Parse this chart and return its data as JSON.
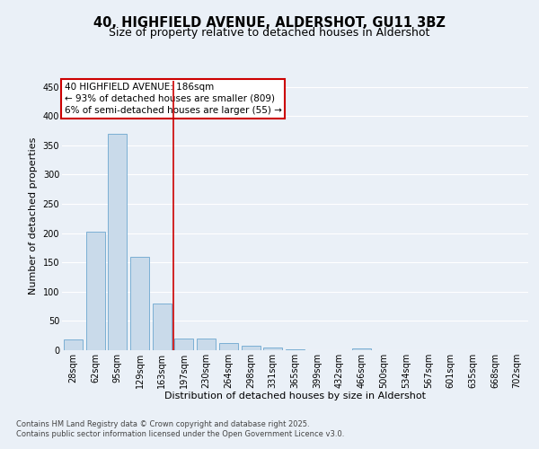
{
  "title_line1": "40, HIGHFIELD AVENUE, ALDERSHOT, GU11 3BZ",
  "title_line2": "Size of property relative to detached houses in Aldershot",
  "xlabel": "Distribution of detached houses by size in Aldershot",
  "ylabel": "Number of detached properties",
  "bar_labels": [
    "28sqm",
    "62sqm",
    "95sqm",
    "129sqm",
    "163sqm",
    "197sqm",
    "230sqm",
    "264sqm",
    "298sqm",
    "331sqm",
    "365sqm",
    "399sqm",
    "432sqm",
    "466sqm",
    "500sqm",
    "534sqm",
    "567sqm",
    "601sqm",
    "635sqm",
    "668sqm",
    "702sqm"
  ],
  "bar_values": [
    18,
    202,
    370,
    160,
    80,
    20,
    20,
    12,
    7,
    4,
    1,
    0,
    0,
    3,
    0,
    0,
    0,
    0,
    0,
    0,
    0
  ],
  "bar_color": "#c9daea",
  "bar_edge_color": "#7bafd4",
  "annotation_text": "40 HIGHFIELD AVENUE: 186sqm\n← 93% of detached houses are smaller (809)\n6% of semi-detached houses are larger (55) →",
  "annotation_box_color": "#ffffff",
  "annotation_box_edge": "#cc0000",
  "vline_x": 4.5,
  "vline_color": "#cc0000",
  "ylim": [
    0,
    460
  ],
  "yticks": [
    0,
    50,
    100,
    150,
    200,
    250,
    300,
    350,
    400,
    450
  ],
  "bg_color": "#eaf0f7",
  "plot_bg_color": "#eaf0f7",
  "grid_color": "#ffffff",
  "footer_text": "Contains HM Land Registry data © Crown copyright and database right 2025.\nContains public sector information licensed under the Open Government Licence v3.0.",
  "title_fontsize": 10.5,
  "subtitle_fontsize": 9,
  "axis_label_fontsize": 8,
  "tick_fontsize": 7,
  "annotation_fontsize": 7.5,
  "footer_fontsize": 6
}
